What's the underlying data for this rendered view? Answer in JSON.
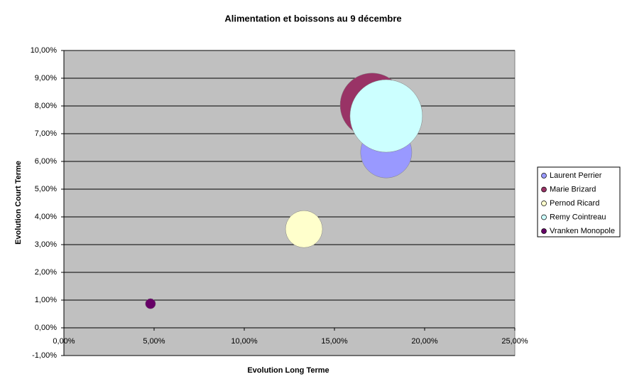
{
  "chart_data": {
    "type": "bubble",
    "title": "Alimentation et boissons au 9 décembre",
    "x_label": "Evolution Long Terme",
    "y_label": "Evolution Court Terme",
    "xlim": [
      0,
      25
    ],
    "xticks": [
      {
        "value": 0,
        "label": "0,00%"
      },
      {
        "value": 5,
        "label": "5,00%"
      },
      {
        "value": 10,
        "label": "10,00%"
      },
      {
        "value": 15,
        "label": "15,00%"
      },
      {
        "value": 20,
        "label": "20,00%"
      },
      {
        "value": 25,
        "label": "25,00%"
      }
    ],
    "ylim": [
      -1,
      10
    ],
    "yticks": [
      {
        "value": -1,
        "label": "-1,00%"
      },
      {
        "value": 0,
        "label": "0,00%"
      },
      {
        "value": 1,
        "label": "1,00%"
      },
      {
        "value": 2,
        "label": "2,00%"
      },
      {
        "value": 3,
        "label": "3,00%"
      },
      {
        "value": 4,
        "label": "4,00%"
      },
      {
        "value": 5,
        "label": "5,00%"
      },
      {
        "value": 6,
        "label": "6,00%"
      },
      {
        "value": 7,
        "label": "7,00%"
      },
      {
        "value": 8,
        "label": "8,00%"
      },
      {
        "value": 9,
        "label": "9,00%"
      },
      {
        "value": 10,
        "label": "10,00%"
      }
    ],
    "grid": true,
    "legend": "right",
    "series": [
      {
        "name": "Laurent Perrier",
        "color": "#9999ff",
        "x": [
          17.87
        ],
        "values": [
          6.33
        ],
        "sizes": [
          50
        ]
      },
      {
        "name": "Marie Brizard",
        "color": "#993366",
        "x": [
          17.09
        ],
        "values": [
          8.03
        ],
        "sizes": [
          78
        ]
      },
      {
        "name": "Pernod Ricard",
        "color": "#ffffcc",
        "x": [
          13.31
        ],
        "values": [
          3.56
        ],
        "sizes": [
          26
        ]
      },
      {
        "name": "Remy Cointreau",
        "color": "#ccffff",
        "x": [
          17.87
        ],
        "values": [
          7.64
        ],
        "sizes": [
          100
        ]
      },
      {
        "name": "Vranken Monopole",
        "color": "#660066",
        "x": [
          4.8
        ],
        "values": [
          0.87
        ],
        "sizes": [
          2
        ]
      }
    ]
  }
}
